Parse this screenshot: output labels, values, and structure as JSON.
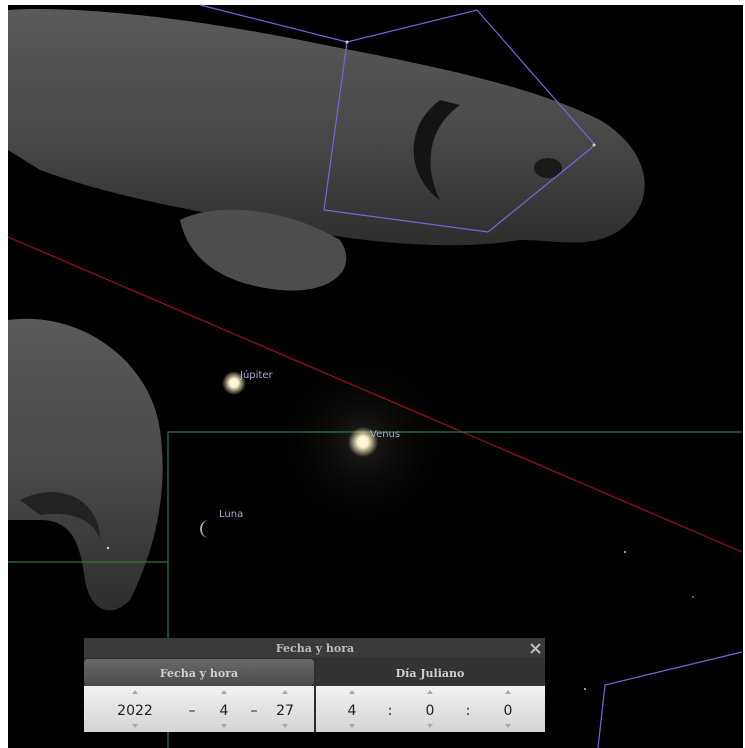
{
  "sky": {
    "objects": [
      "Júpiter",
      "Venus",
      "Luna"
    ]
  },
  "dialog": {
    "title": "Fecha y hora",
    "tabs": [
      "Fecha y hora",
      "Día Juliano"
    ],
    "date": {
      "year": 2022,
      "month": 4,
      "day": 27
    },
    "time": {
      "hour": 4,
      "minute": 0,
      "second": 0
    },
    "date_separator": "–",
    "time_separator": ":"
  }
}
